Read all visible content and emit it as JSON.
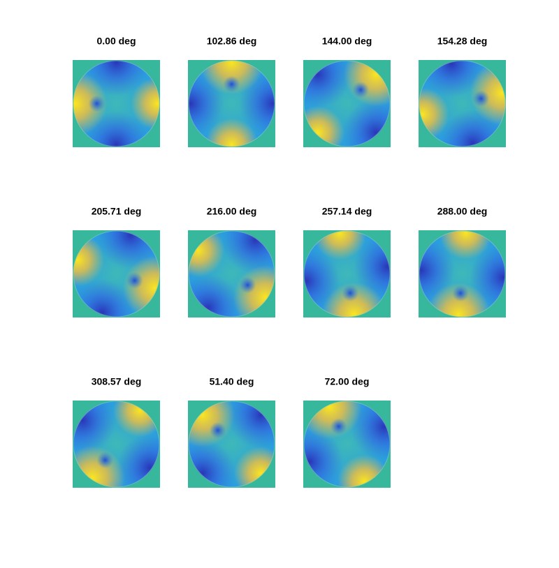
{
  "panels": [
    {
      "title": "0.00 deg"
    },
    {
      "title": "102.86 deg"
    },
    {
      "title": "144.00 deg"
    },
    {
      "title": "154.28 deg"
    },
    {
      "title": "205.71 deg"
    },
    {
      "title": "216.00 deg"
    },
    {
      "title": "257.14 deg"
    },
    {
      "title": "288.00 deg"
    },
    {
      "title": "308.57 deg"
    },
    {
      "title": "51.40 deg"
    },
    {
      "title": "72.00 deg"
    }
  ]
}
